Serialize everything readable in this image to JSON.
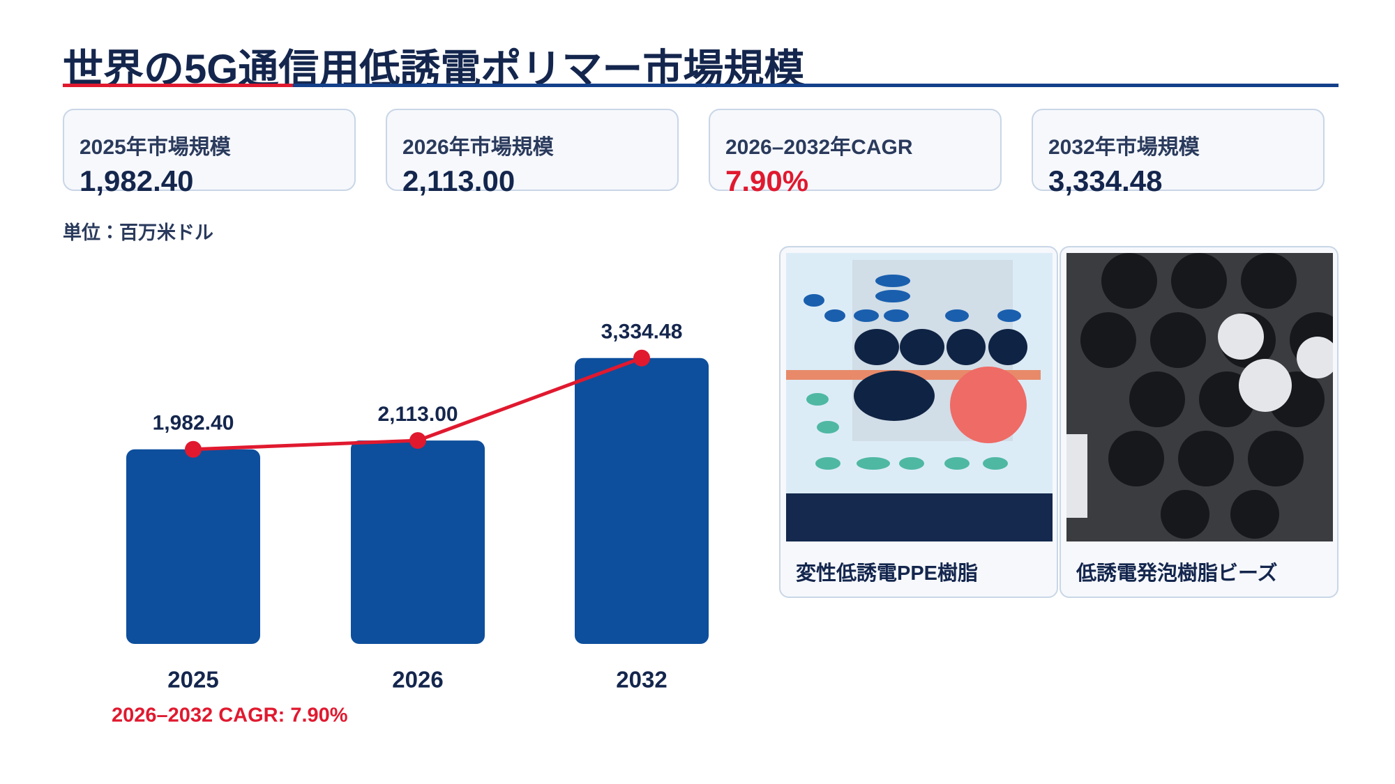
{
  "header": {
    "title": "世界の5G通信用低誘電ポリマー市場規模"
  },
  "kpis": [
    {
      "label": "2025年市場規模",
      "value": "1,982.40"
    },
    {
      "label": "2026年市場規模",
      "value": "2,113.00"
    },
    {
      "label": "2026–2032年CAGR",
      "value": "7.90%"
    },
    {
      "label": "2032年市場規模",
      "value": "3,334.48"
    }
  ],
  "unit": "単位：百万米ドル",
  "chart_data": {
    "type": "bar",
    "categories": [
      "2025",
      "2026",
      "2032"
    ],
    "values": [
      1982.4,
      2113.0,
      3334.48
    ],
    "value_labels": [
      "1,982.40",
      "2,113.00",
      "3,334.48"
    ],
    "color": "#0d4f9c",
    "line": true,
    "line_color": "#e0192f",
    "ylim": [
      -900,
      3600
    ],
    "annotation": "2026–2032 CAGR: 7.90%"
  },
  "images": [
    {
      "caption": "変性低誘電PPE樹脂"
    },
    {
      "caption": "低誘電発泡樹脂ビーズ"
    }
  ]
}
